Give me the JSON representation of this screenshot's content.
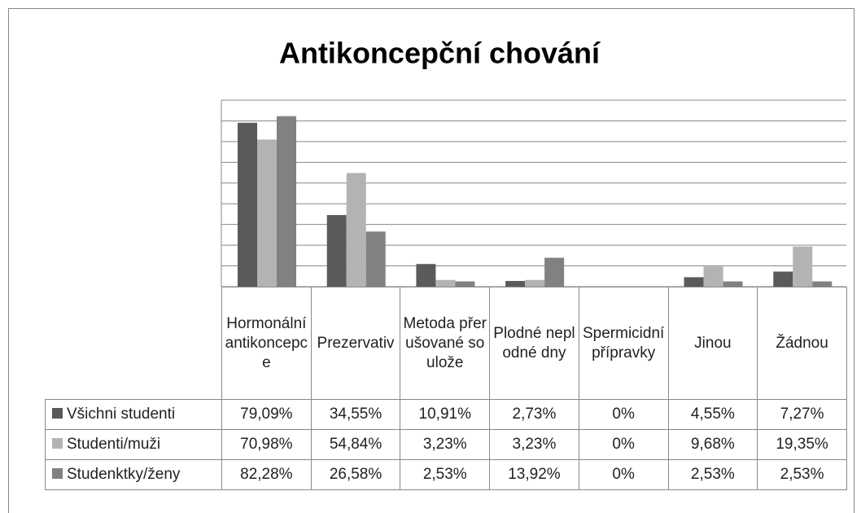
{
  "chart_data": {
    "type": "bar",
    "title": "Antikoncepční chování",
    "categories": [
      "Hormonální antikoncepce",
      "Prezervativ",
      "Metoda přerušované soulože",
      "Plodné neplodné dny",
      "Spermicidní přípravky",
      "Jinou",
      "Žádnou"
    ],
    "series": [
      {
        "name": "Všichni studenti",
        "color": "#5a5a5a",
        "values": [
          79.09,
          34.55,
          10.91,
          2.73,
          0,
          4.55,
          7.27
        ],
        "value_labels": [
          "79,09%",
          "34,55%",
          "10,91%",
          "2,73%",
          "0%",
          "4,55%",
          "7,27%"
        ]
      },
      {
        "name": "Studenti/muži",
        "color": "#b3b3b3",
        "values": [
          70.98,
          54.84,
          3.23,
          3.23,
          0,
          9.68,
          19.35
        ],
        "value_labels": [
          "70,98%",
          "54,84%",
          "3,23%",
          "3,23%",
          "0%",
          "9,68%",
          "19,35%"
        ]
      },
      {
        "name": "Studenktky/ženy",
        "color": "#818181",
        "values": [
          82.28,
          26.58,
          2.53,
          13.92,
          0,
          2.53,
          2.53
        ],
        "value_labels": [
          "82,28%",
          "26,58%",
          "2,53%",
          "13,92%",
          "0%",
          "2,53%",
          "2,53%"
        ]
      }
    ],
    "ylim": [
      0,
      90
    ],
    "yticks": [
      0,
      10,
      20,
      30,
      40,
      50,
      60,
      70,
      80,
      90
    ],
    "grid": true
  }
}
